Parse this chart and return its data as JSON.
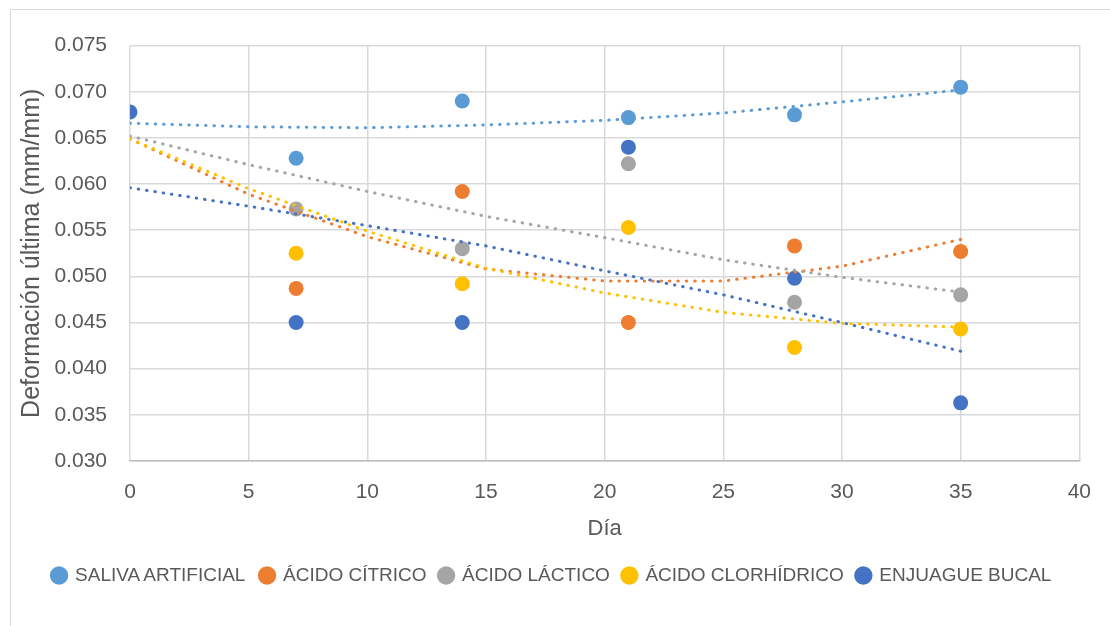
{
  "chart_data": {
    "type": "scatter",
    "xlabel": "Día",
    "ylabel": "Deformación última (mm/mm)",
    "x": [
      0,
      7,
      14,
      21,
      28,
      35
    ],
    "xlim": [
      0,
      40
    ],
    "xticks": [
      0,
      5,
      10,
      15,
      20,
      25,
      30,
      35,
      40
    ],
    "ylim": [
      0.03,
      0.075
    ],
    "yticks": [
      {
        "value": 0.03,
        "label": "0.030"
      },
      {
        "value": 0.035,
        "label": "0.035"
      },
      {
        "value": 0.04,
        "label": "0.040"
      },
      {
        "value": 0.045,
        "label": "0.045"
      },
      {
        "value": 0.05,
        "label": "0.050"
      },
      {
        "value": 0.055,
        "label": "0.055"
      },
      {
        "value": 0.06,
        "label": "0.060"
      },
      {
        "value": 0.065,
        "label": "0.065"
      },
      {
        "value": 0.07,
        "label": "0.070"
      },
      {
        "value": 0.075,
        "label": "0.075"
      }
    ],
    "grid": true,
    "legend": "bottom",
    "marker": "circle",
    "series": [
      {
        "name": "SALIVA ARTIFICIAL",
        "color": "#5b9bd5",
        "values": [
          null,
          0.0628,
          0.069,
          0.0672,
          0.0675,
          0.0705
        ]
      },
      {
        "name": "ÁCIDO CÍTRICO",
        "color": "#ed7d31",
        "values": [
          null,
          0.0487,
          0.0592,
          0.045,
          0.0533,
          0.0527
        ]
      },
      {
        "name": "ÁCIDO LÁCTICO",
        "color": "#a5a5a5",
        "values": [
          null,
          0.0573,
          0.053,
          0.0622,
          0.0472,
          0.048
        ]
      },
      {
        "name": "ÁCIDO CLORHÍDRICO",
        "color": "#ffc000",
        "values": [
          null,
          0.0525,
          0.0492,
          0.0553,
          0.0423,
          0.0443
        ]
      },
      {
        "name": "ENJUAGUE BUCAL",
        "color": "#4472c4",
        "values": [
          0.0678,
          0.045,
          0.045,
          0.064,
          0.0498,
          0.0363
        ]
      },
      {
        "type": "line",
        "line_style": "dotted",
        "marker": "none",
        "color": "#5b9bd5",
        "x": [
          0,
          5,
          10,
          15,
          20,
          25,
          30,
          35
        ],
        "values": [
          0.0666,
          0.0662,
          0.0661,
          0.0664,
          0.0669,
          0.0677,
          0.0689,
          0.0702
        ]
      },
      {
        "type": "line",
        "line_style": "dotted",
        "marker": "none",
        "color": "#ed7d31",
        "x": [
          0,
          5,
          10,
          15,
          20,
          25,
          30,
          35
        ],
        "values": [
          0.0649,
          0.0589,
          0.0543,
          0.0508,
          0.0495,
          0.0495,
          0.0511,
          0.054
        ]
      },
      {
        "type": "line",
        "line_style": "dotted",
        "marker": "none",
        "color": "#a5a5a5",
        "x": [
          0,
          5,
          10,
          15,
          20,
          25,
          30,
          35
        ],
        "values": [
          0.0652,
          0.0621,
          0.0592,
          0.0565,
          0.0542,
          0.0518,
          0.0499,
          0.0483
        ]
      },
      {
        "type": "line",
        "line_style": "dotted",
        "marker": "none",
        "color": "#ffc000",
        "x": [
          0,
          5,
          10,
          15,
          20,
          25,
          30,
          35
        ],
        "values": [
          0.0649,
          0.0595,
          0.0549,
          0.0509,
          0.0482,
          0.0461,
          0.0449,
          0.0445
        ]
      },
      {
        "type": "line",
        "line_style": "dotted",
        "marker": "none",
        "color": "#4472c4",
        "x": [
          0,
          5,
          10,
          15,
          20,
          25,
          30,
          35
        ],
        "values": [
          0.0596,
          0.0576,
          0.0555,
          0.0533,
          0.0506,
          0.048,
          0.045,
          0.0419
        ]
      }
    ]
  }
}
